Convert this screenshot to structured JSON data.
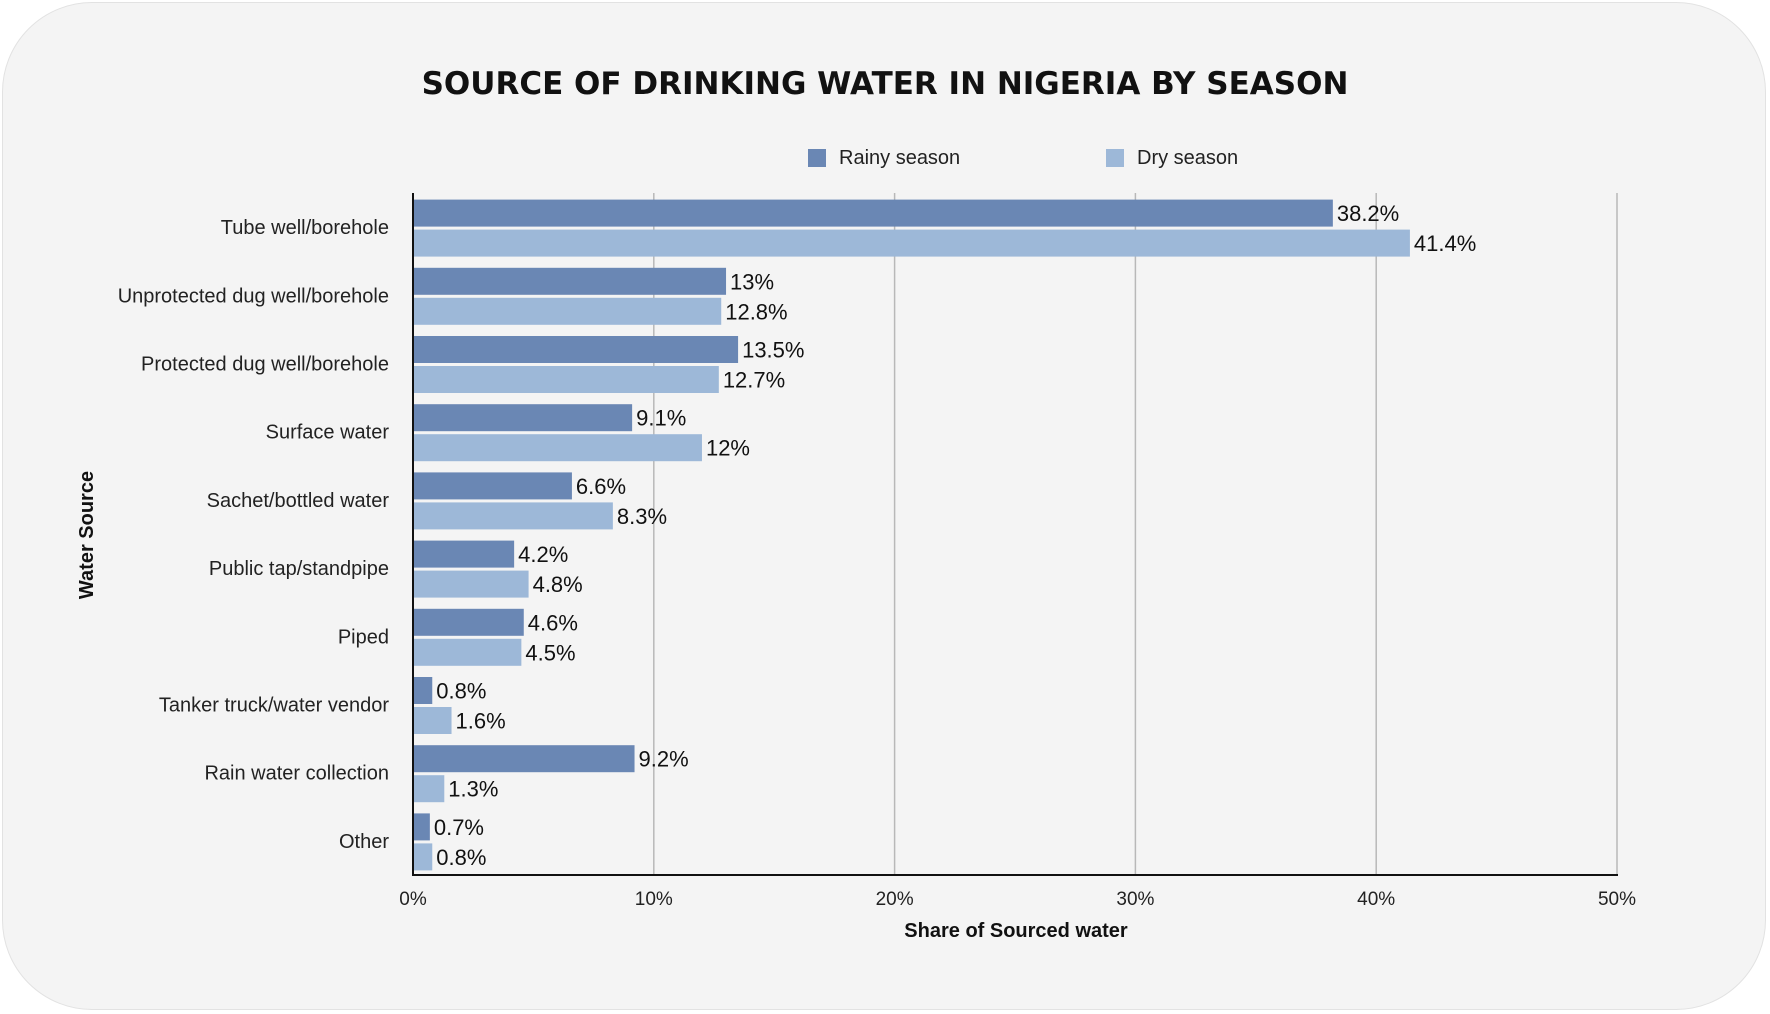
{
  "chart_data": {
    "type": "bar",
    "orientation": "horizontal",
    "title": "SOURCE OF DRINKING WATER IN NIGERIA BY SEASON",
    "xlabel": "Share of Sourced water",
    "ylabel": "Water Source",
    "xlim": [
      0,
      50
    ],
    "xticks": [
      "0%",
      "10%",
      "20%",
      "30%",
      "40%",
      "50%"
    ],
    "grid": true,
    "legend_position": "top",
    "categories": [
      "Tube well/borehole",
      "Unprotected dug well/borehole",
      "Protected dug well/borehole",
      "Surface water",
      "Sachet/bottled water",
      "Public tap/standpipe",
      "Piped",
      "Tanker truck/water vendor",
      "Rain water collection",
      "Other"
    ],
    "series": [
      {
        "name": "Rainy season",
        "color": "#6a87b4",
        "values": [
          38.2,
          13,
          13.5,
          9.1,
          6.6,
          4.2,
          4.6,
          0.8,
          9.2,
          0.7
        ],
        "labels": [
          "38.2%",
          "13%",
          "13.5%",
          "9.1%",
          "6.6%",
          "4.2%",
          "4.6%",
          "0.8%",
          "9.2%",
          "0.7%"
        ]
      },
      {
        "name": "Dry season",
        "color": "#9db8d8",
        "values": [
          41.4,
          12.8,
          12.7,
          12,
          8.3,
          4.8,
          4.5,
          1.6,
          1.3,
          0.8
        ],
        "labels": [
          "41.4%",
          "12.8%",
          "12.7%",
          "12%",
          "8.3%",
          "4.8%",
          "4.5%",
          "1.6%",
          "1.3%",
          "0.8%"
        ]
      }
    ]
  }
}
